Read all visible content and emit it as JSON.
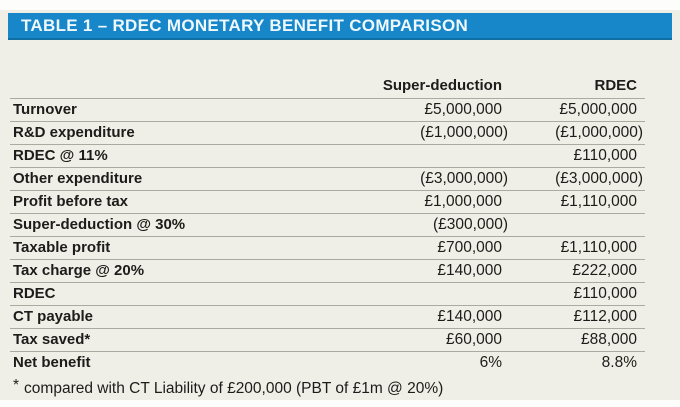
{
  "chart_data": {
    "type": "table",
    "title": "TABLE 1 – RDEC MONETARY BENEFIT COMPARISON",
    "columns": [
      "Super-deduction",
      "RDEC"
    ],
    "rows": [
      {
        "label": "Turnover",
        "super_deduction": "£5,000,000",
        "rdec": "£5,000,000"
      },
      {
        "label": "R&D expenditure",
        "super_deduction": "(£1,000,000)",
        "rdec": "(£1,000,000)"
      },
      {
        "label": "RDEC @ 11%",
        "super_deduction": "",
        "rdec": "£110,000"
      },
      {
        "label": "Other expenditure",
        "super_deduction": "(£3,000,000)",
        "rdec": "(£3,000,000)"
      },
      {
        "label": "Profit before tax",
        "super_deduction": "£1,000,000",
        "rdec": "£1,110,000"
      },
      {
        "label": "Super-deduction @ 30%",
        "super_deduction": "(£300,000)",
        "rdec": ""
      },
      {
        "label": "Taxable profit",
        "super_deduction": "£700,000",
        "rdec": "£1,110,000"
      },
      {
        "label": "Tax charge @ 20%",
        "super_deduction": "£140,000",
        "rdec": "£222,000"
      },
      {
        "label": "RDEC",
        "super_deduction": "",
        "rdec": "£110,000"
      },
      {
        "label": "CT payable",
        "super_deduction": "£140,000",
        "rdec": "£112,000"
      },
      {
        "label": "Tax saved*",
        "super_deduction": "£60,000",
        "rdec": "£88,000"
      },
      {
        "label": "Net benefit",
        "super_deduction": "6%",
        "rdec": "8.8%"
      }
    ],
    "footnote": {
      "marker": "*",
      "text": "compared with CT Liability of £200,000 (PBT of £1m @ 20%)"
    },
    "layout_hints": {
      "value_alignment": "right",
      "negative_format": "parentheses",
      "grid": "horizontal-rules-only"
    }
  },
  "colors": {
    "title_bar_bg": "#1787c9",
    "title_bar_border": "#0f6fa3",
    "title_text": "#eef8fd",
    "panel_bg": "#f0efe7",
    "divider": "#abaaa2",
    "text": "#1c1c1a",
    "page_bg": "#fdfdfc"
  }
}
